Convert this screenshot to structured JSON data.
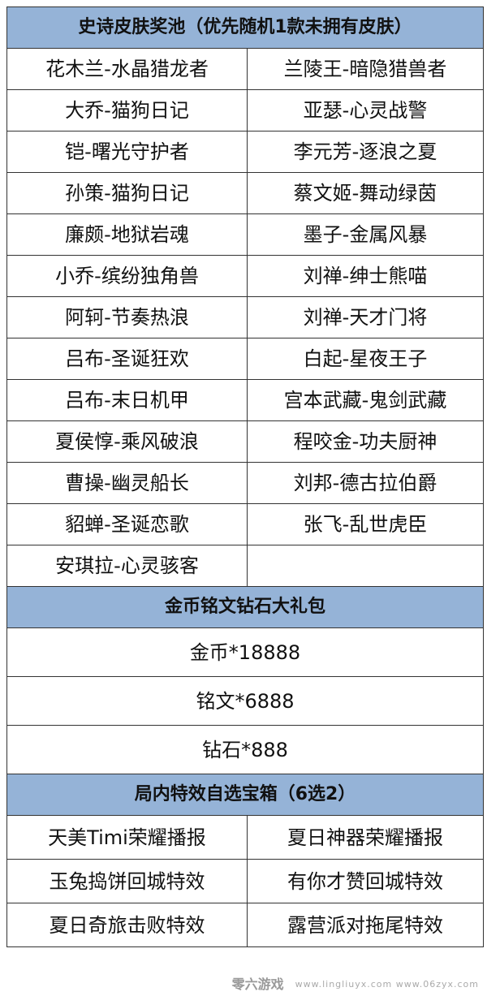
{
  "sections": [
    {
      "title": "史诗皮肤奖池（优先随机1款未拥有皮肤）",
      "rows": [
        [
          "花木兰-水晶猎龙者",
          "兰陵王-暗隐猎兽者"
        ],
        [
          "大乔-猫狗日记",
          "亚瑟-心灵战警"
        ],
        [
          "铠-曙光守护者",
          "李元芳-逐浪之夏"
        ],
        [
          "孙策-猫狗日记",
          "蔡文姬-舞动绿茵"
        ],
        [
          "廉颇-地狱岩魂",
          "墨子-金属风暴"
        ],
        [
          "小乔-缤纷独角兽",
          "刘禅-绅士熊喵"
        ],
        [
          "阿轲-节奏热浪",
          "刘禅-天才门将"
        ],
        [
          "吕布-圣诞狂欢",
          "白起-星夜王子"
        ],
        [
          "吕布-末日机甲",
          "宫本武藏-鬼剑武藏"
        ],
        [
          "夏侯惇-乘风破浪",
          "程咬金-功夫厨神"
        ],
        [
          "曹操-幽灵船长",
          "刘邦-德古拉伯爵"
        ],
        [
          "貂蝉-圣诞恋歌",
          "张飞-乱世虎臣"
        ],
        [
          "安琪拉-心灵骇客",
          ""
        ]
      ]
    },
    {
      "title": "金币铭文钻石大礼包",
      "rows": [
        [
          "金币*18888"
        ],
        [
          "铭文*6888"
        ],
        [
          "钻石*888"
        ]
      ]
    },
    {
      "title": "局内特效自选宝箱（6选2）",
      "rows": [
        [
          "天美Timi荣耀播报",
          "夏日神器荣耀播报"
        ],
        [
          "玉兔捣饼回城特效",
          "有你才赞回城特效"
        ],
        [
          "夏日奇旅击败特效",
          "露营派对拖尾特效"
        ]
      ]
    }
  ],
  "watermark": {
    "logo": "零六游戏",
    "urls": "www.lingliuyx.com  www.06zyx.com"
  },
  "colors": {
    "header_bg": "#95b3d7"
  }
}
